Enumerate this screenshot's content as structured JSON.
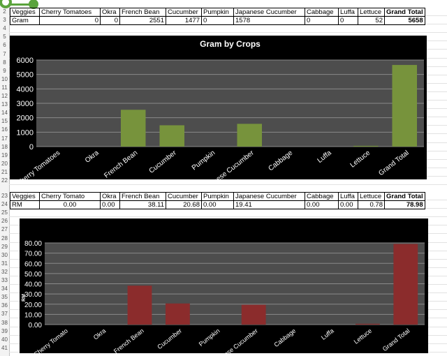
{
  "table1": {
    "header": [
      "Veggies",
      "Cherry Tomatoes",
      "Okra",
      "French Bean",
      "Cucumber",
      "Pumpkin",
      "Japanese Cucumber",
      "Cabbage",
      "Luffa",
      "Lettuce",
      "Grand Total"
    ],
    "row": [
      "Gram",
      "0",
      "0",
      "2551",
      "1477",
      "0",
      "1578",
      "0",
      "0",
      "52",
      "5658"
    ]
  },
  "table2": {
    "header": [
      "Veggies",
      "Cherry Tomato",
      "Okra",
      "French Bean",
      "Cucumber",
      "Pumpkin",
      "Japanese Cucumber",
      "Cabbage",
      "Luffa",
      "Lettuce",
      "Grand Total"
    ],
    "row": [
      "RM",
      "0.00",
      "0.00",
      "38.11",
      "20.68",
      "0.00",
      "19.41",
      "0.00",
      "0.00",
      "0.78",
      "78.98"
    ]
  },
  "row_numbers_top": [
    "2",
    "3",
    "4",
    "5",
    "6",
    "7",
    "8",
    "9",
    "10",
    "11",
    "12",
    "13",
    "14",
    "15",
    "16",
    "17",
    "18",
    "19",
    "20",
    "21",
    "22"
  ],
  "row_numbers_bottom": [
    "23",
    "24",
    "25",
    "26",
    "27",
    "28",
    "29",
    "30",
    "31",
    "32",
    "33",
    "34",
    "35",
    "36",
    "37",
    "38",
    "39",
    "40",
    "41"
  ],
  "colors": {
    "chart1_bar": "#77933c",
    "chart2_bar": "#8b2c2c",
    "plot_bg": "#4d4d4d",
    "grid": "#8a8a8a"
  },
  "chart_data": [
    {
      "type": "bar",
      "title": "Gram by Crops",
      "categories": [
        "Cherry Tomatoes",
        "Okra",
        "French Bean",
        "Cucumber",
        "Pumpkin",
        "Japanese Cucumber",
        "Cabbage",
        "Luffa",
        "Lettuce",
        "Grand Total"
      ],
      "values": [
        0,
        0,
        2551,
        1477,
        0,
        1578,
        0,
        0,
        52,
        5658
      ],
      "ylim": [
        0,
        6000
      ],
      "yticks": [
        "0",
        "1000",
        "2000",
        "3000",
        "4000",
        "5000",
        "6000"
      ],
      "ylabel": "",
      "xlabel": "",
      "grid": true
    },
    {
      "type": "bar",
      "title": "",
      "categories": [
        "Cherry Tomato",
        "Okra",
        "French Bean",
        "Cucumber",
        "Pumpkin",
        "Japanese Cucumber",
        "Cabbage",
        "Luffa",
        "Lettuce",
        "Grand Total"
      ],
      "values": [
        0,
        0,
        38.11,
        20.68,
        0,
        19.41,
        0,
        0,
        0.78,
        78.98
      ],
      "ylim": [
        0,
        80
      ],
      "yticks": [
        "0.00",
        "10.00",
        "20.00",
        "30.00",
        "40.00",
        "50.00",
        "60.00",
        "70.00",
        "80.00"
      ],
      "ylabel": "RM",
      "xlabel": "",
      "grid": true
    }
  ]
}
